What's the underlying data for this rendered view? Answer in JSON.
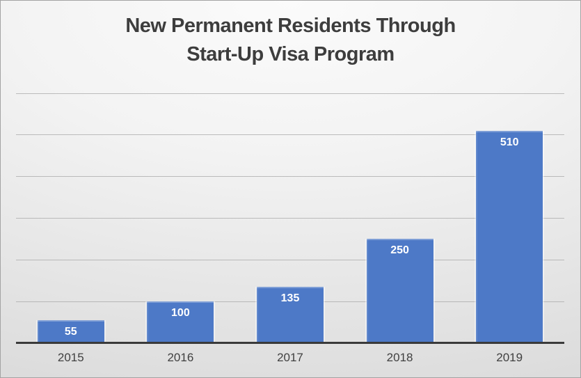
{
  "chart_data": {
    "type": "bar",
    "title": "New Permanent Residents Through Start-Up Visa Program",
    "title_lines": [
      "New Permanent Residents Through",
      "Start-Up Visa Program"
    ],
    "categories": [
      "2015",
      "2016",
      "2017",
      "2018",
      "2019"
    ],
    "values": [
      55,
      100,
      135,
      250,
      510
    ],
    "xlabel": "",
    "ylabel": "",
    "ylim": [
      0,
      600
    ],
    "gridline_interval": 100,
    "grid": true,
    "legend": "none",
    "data_labels": "inside-end",
    "colors": {
      "bar": "#4d79c7",
      "data_label": "#ffffff",
      "gridline": "#a8a8a8",
      "axis_line": "#3a3a3a",
      "axis_label": "#404040",
      "title": "#3d3d3d",
      "background_outer": "#d9d9d9",
      "background_inner": "#fbfbfb",
      "border": "#a3a3a3"
    }
  }
}
